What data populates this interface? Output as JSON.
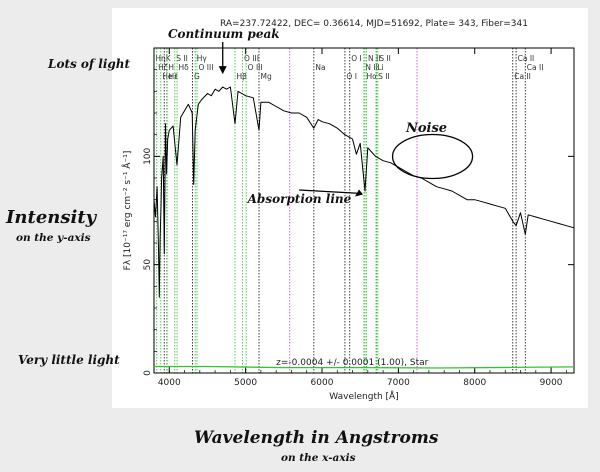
{
  "chart_data": {
    "type": "line",
    "title": "RA=237.72422, DEC= 0.36614, MJD=51692, Plate= 343, Fiber=341",
    "xlabel": "Wavelength [Å]",
    "ylabel": "Fλ [10⁻¹⁷ erg cm⁻² s⁻¹ Å⁻¹]",
    "xlim": [
      3800,
      9300
    ],
    "ylim": [
      0,
      150
    ],
    "x_ticks": [
      4000,
      5000,
      6000,
      7000,
      8000,
      9000
    ],
    "y_ticks": [
      0,
      50,
      100
    ],
    "redshift_text": "z=-0.0004 +/- 0.0001 (1.00), Star",
    "series": [
      {
        "name": "flux",
        "color": "#000000",
        "x": [
          3800,
          3820,
          3840,
          3860,
          3870,
          3880,
          3890,
          3900,
          3920,
          3935,
          3950,
          3965,
          3980,
          4000,
          4050,
          4101,
          4150,
          4200,
          4250,
          4300,
          4320,
          4340,
          4380,
          4420,
          4500,
          4550,
          4600,
          4650,
          4700,
          4750,
          4800,
          4861,
          4900,
          4950,
          5000,
          5100,
          5175,
          5200,
          5300,
          5400,
          5500,
          5600,
          5700,
          5800,
          5893,
          5950,
          6000,
          6100,
          6200,
          6300,
          6400,
          6450,
          6500,
          6563,
          6600,
          6650,
          6700,
          6800,
          6900,
          7000,
          7100,
          7200,
          7300,
          7400,
          7500,
          7600,
          7700,
          7800,
          7900,
          8000,
          8100,
          8200,
          8300,
          8400,
          8498,
          8542,
          8600,
          8662,
          8700,
          8800,
          8900,
          9000,
          9100,
          9200,
          9300
        ],
        "y": [
          80,
          72,
          86,
          55,
          35,
          62,
          75,
          90,
          100,
          55,
          115,
          92,
          108,
          112,
          114,
          96,
          118,
          121,
          124,
          120,
          87,
          112,
          124,
          126,
          129,
          128,
          131,
          130,
          132,
          131,
          132,
          115,
          130,
          129,
          128,
          127,
          112,
          125,
          125,
          123,
          121,
          120,
          120,
          118,
          113,
          117,
          116,
          115,
          113,
          110,
          108,
          101,
          106,
          84,
          104,
          102,
          100,
          98,
          97,
          95,
          93,
          91,
          90,
          88,
          86,
          85,
          84,
          82,
          80,
          80,
          79,
          78,
          77,
          76,
          70,
          68,
          74,
          64,
          73,
          72,
          71,
          70,
          69,
          68,
          67
        ]
      },
      {
        "name": "error",
        "color": "#2ec82e",
        "x": [
          3800,
          4500,
          5500,
          6500,
          7500,
          8500,
          9300
        ],
        "y": [
          3,
          3,
          2.5,
          2.5,
          2.3,
          2.6,
          2.8
        ]
      }
    ],
    "spectral_lines": [
      {
        "x": 3798,
        "color": "#22bb22",
        "labels": [
          "Hη"
        ]
      },
      {
        "x": 3835,
        "color": "#22bb22",
        "labels": [
          "Hζ"
        ]
      },
      {
        "x": 3889,
        "color": "#22bb22",
        "labels": [
          "He I"
        ]
      },
      {
        "x": 3934,
        "color": "#000000",
        "labels": [
          "K"
        ]
      },
      {
        "x": 3969,
        "color": "#000000",
        "labels": [
          "H"
        ]
      },
      {
        "x": 3970,
        "color": "#22bb22",
        "labels": [
          "Hε"
        ]
      },
      {
        "x": 4072,
        "color": "#22bb22",
        "labels": [
          "S II"
        ]
      },
      {
        "x": 4102,
        "color": "#22bb22",
        "labels": [
          "Hδ"
        ]
      },
      {
        "x": 4304,
        "color": "#000000",
        "labels": [
          "G"
        ]
      },
      {
        "x": 4340,
        "color": "#22bb22",
        "labels": [
          "Hγ"
        ]
      },
      {
        "x": 4363,
        "color": "#22bb22",
        "labels": [
          "O III"
        ]
      },
      {
        "x": 4861,
        "color": "#22bb22",
        "labels": [
          "Hβ"
        ]
      },
      {
        "x": 4959,
        "color": "#22bb22",
        "labels": [
          "O III"
        ]
      },
      {
        "x": 5007,
        "color": "#22bb22",
        "labels": [
          "O III"
        ]
      },
      {
        "x": 5175,
        "color": "#000000",
        "labels": [
          "Mg"
        ]
      },
      {
        "x": 5577,
        "color": "#cc33cc",
        "labels": []
      },
      {
        "x": 5893,
        "color": "#000000",
        "labels": [
          "Na"
        ]
      },
      {
        "x": 6300,
        "color": "#000000",
        "labels": [
          "O I"
        ]
      },
      {
        "x": 6363,
        "color": "#000000",
        "labels": [
          "O I"
        ]
      },
      {
        "x": 6548,
        "color": "#22bb22",
        "labels": [
          "N II"
        ]
      },
      {
        "x": 6563,
        "color": "#22bb22",
        "labels": [
          "Hα"
        ]
      },
      {
        "x": 6583,
        "color": "#22bb22",
        "labels": [
          "N II"
        ]
      },
      {
        "x": 6707,
        "color": "#22bb22",
        "labels": [
          "Li"
        ]
      },
      {
        "x": 6716,
        "color": "#22bb22",
        "labels": [
          "S II"
        ]
      },
      {
        "x": 6731,
        "color": "#22bb22",
        "labels": [
          "S II"
        ]
      },
      {
        "x": 7244,
        "color": "#cc33cc",
        "labels": []
      },
      {
        "x": 8498,
        "color": "#000000",
        "labels": [
          "Ca II"
        ]
      },
      {
        "x": 8542,
        "color": "#000000",
        "labels": [
          "Ca II"
        ]
      },
      {
        "x": 8662,
        "color": "#000000",
        "labels": [
          "Ca II"
        ]
      }
    ],
    "annotations": [
      {
        "text": "Continuum peak",
        "x": 4700,
        "y": 137
      },
      {
        "text": "Absorption line",
        "x": 6550,
        "y": 81
      },
      {
        "text": "Noise",
        "x": 7500,
        "y": 105
      }
    ]
  },
  "side_labels": {
    "lots_of_light": "Lots of light",
    "very_little_light": "Very little light",
    "intensity": "Intensity",
    "intensity_sub": "on the y-axis",
    "wavelength": "Wavelength in Angstroms",
    "wavelength_sub": "on the x-axis"
  }
}
